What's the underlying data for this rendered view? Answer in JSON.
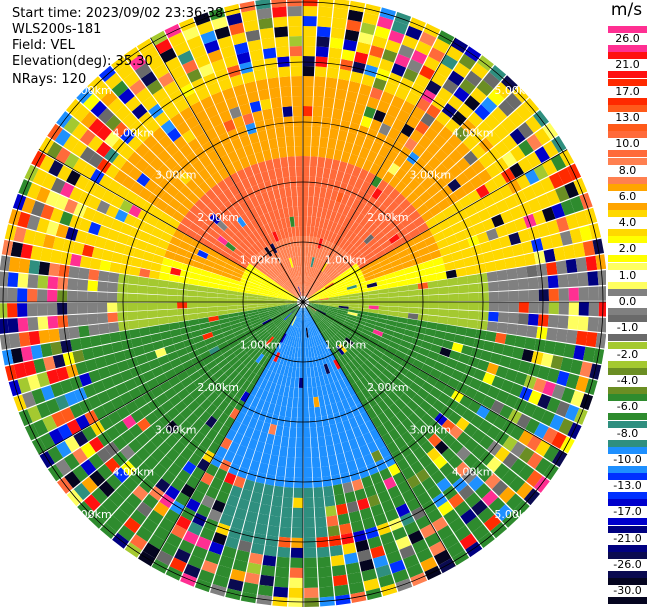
{
  "header": {
    "start_time": "Start time: 2023/09/02 23:36:38",
    "instrument": "WLS200s-181",
    "field": "Field: VEL",
    "elevation": "Elevation(deg): 35.30",
    "nrays": "NRays: 120"
  },
  "rings": [
    {
      "label": "1.00km",
      "km": 1
    },
    {
      "label": "2.00km",
      "km": 2
    },
    {
      "label": "3.00km",
      "km": 3
    },
    {
      "label": "4.00km",
      "km": 4
    },
    {
      "label": "5.00km",
      "km": 5
    }
  ],
  "colorbar": {
    "unit": "m/s",
    "levels": [
      {
        "label": "26.0",
        "color": "#ff2f92"
      },
      {
        "label": "21.0",
        "color": "#ff1010"
      },
      {
        "label": "17.0",
        "color": "#ff2a00"
      },
      {
        "label": "13.0",
        "color": "#ff5a1a"
      },
      {
        "label": "10.0",
        "color": "#ff6a3a"
      },
      {
        "label": "8.0",
        "color": "#ff8050"
      },
      {
        "label": "6.0",
        "color": "#ffa500"
      },
      {
        "label": "4.0",
        "color": "#ffd800"
      },
      {
        "label": "2.0",
        "color": "#ffff00"
      },
      {
        "label": "1.0",
        "color": "#ffff60"
      },
      {
        "label": "0.0",
        "color": "#808080"
      },
      {
        "label": "-1.0",
        "color": "#6a6a6a"
      },
      {
        "label": "-2.0",
        "color": "#a4c930"
      },
      {
        "label": "-4.0",
        "color": "#6b8e23"
      },
      {
        "label": "-6.0",
        "color": "#2e8b2e"
      },
      {
        "label": "-8.0",
        "color": "#2f8f7f"
      },
      {
        "label": "-10.0",
        "color": "#1e90ff"
      },
      {
        "label": "-13.0",
        "color": "#0030ff"
      },
      {
        "label": "-17.0",
        "color": "#0000cc"
      },
      {
        "label": "-21.0",
        "color": "#000080"
      },
      {
        "label": "-26.0",
        "color": "#0a0a50"
      },
      {
        "label": "-30.0",
        "color": "#050520"
      }
    ]
  }
}
